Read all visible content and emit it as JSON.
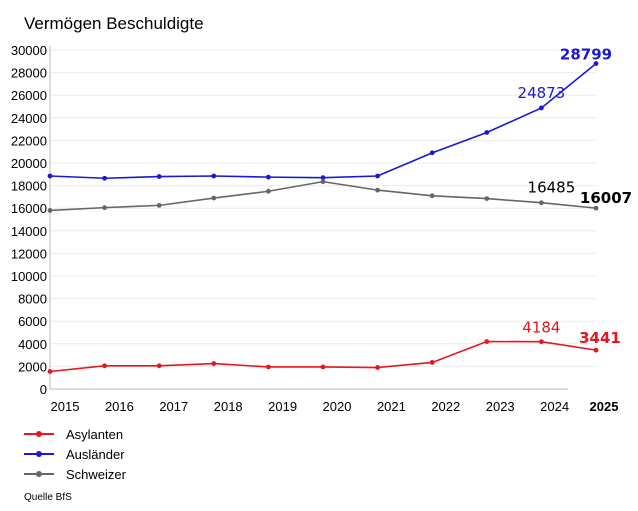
{
  "chart_data": {
    "type": "line",
    "title": "Vermögen Beschuldigte",
    "x": [
      "2015",
      "2016",
      "2017",
      "2018",
      "2019",
      "2020",
      "2021",
      "2022",
      "2023",
      "2024",
      "2025"
    ],
    "ylim": [
      0,
      30000
    ],
    "yticks": [
      0,
      2000,
      4000,
      6000,
      8000,
      10000,
      12000,
      14000,
      16000,
      18000,
      20000,
      22000,
      24000,
      26000,
      28000,
      30000
    ],
    "grid": true,
    "legend_position": "bottom-left",
    "series": [
      {
        "name": "Asylanten",
        "color": "#e8161c",
        "values": [
          1550,
          2050,
          2050,
          2250,
          1950,
          1950,
          1900,
          2350,
          4200,
          4184,
          3441
        ],
        "labels": [
          {
            "index": 9,
            "text": "4184"
          },
          {
            "index": 10,
            "text": "3441"
          }
        ]
      },
      {
        "name": "Ausländer",
        "color": "#1a18d6",
        "values": [
          18850,
          18650,
          18800,
          18850,
          18750,
          18700,
          18850,
          20900,
          22700,
          24873,
          28799
        ],
        "labels": [
          {
            "index": 9,
            "text": "24873"
          },
          {
            "index": 10,
            "text": "28799"
          }
        ]
      },
      {
        "name": "Schweizer",
        "color": "#666666",
        "values": [
          15800,
          16050,
          16250,
          16900,
          17500,
          18350,
          17600,
          17100,
          16850,
          16485,
          16007
        ],
        "labels": [
          {
            "index": 9,
            "text": "16485"
          },
          {
            "index": 10,
            "text": "16007"
          }
        ]
      }
    ]
  },
  "source": "Quelle BfS"
}
